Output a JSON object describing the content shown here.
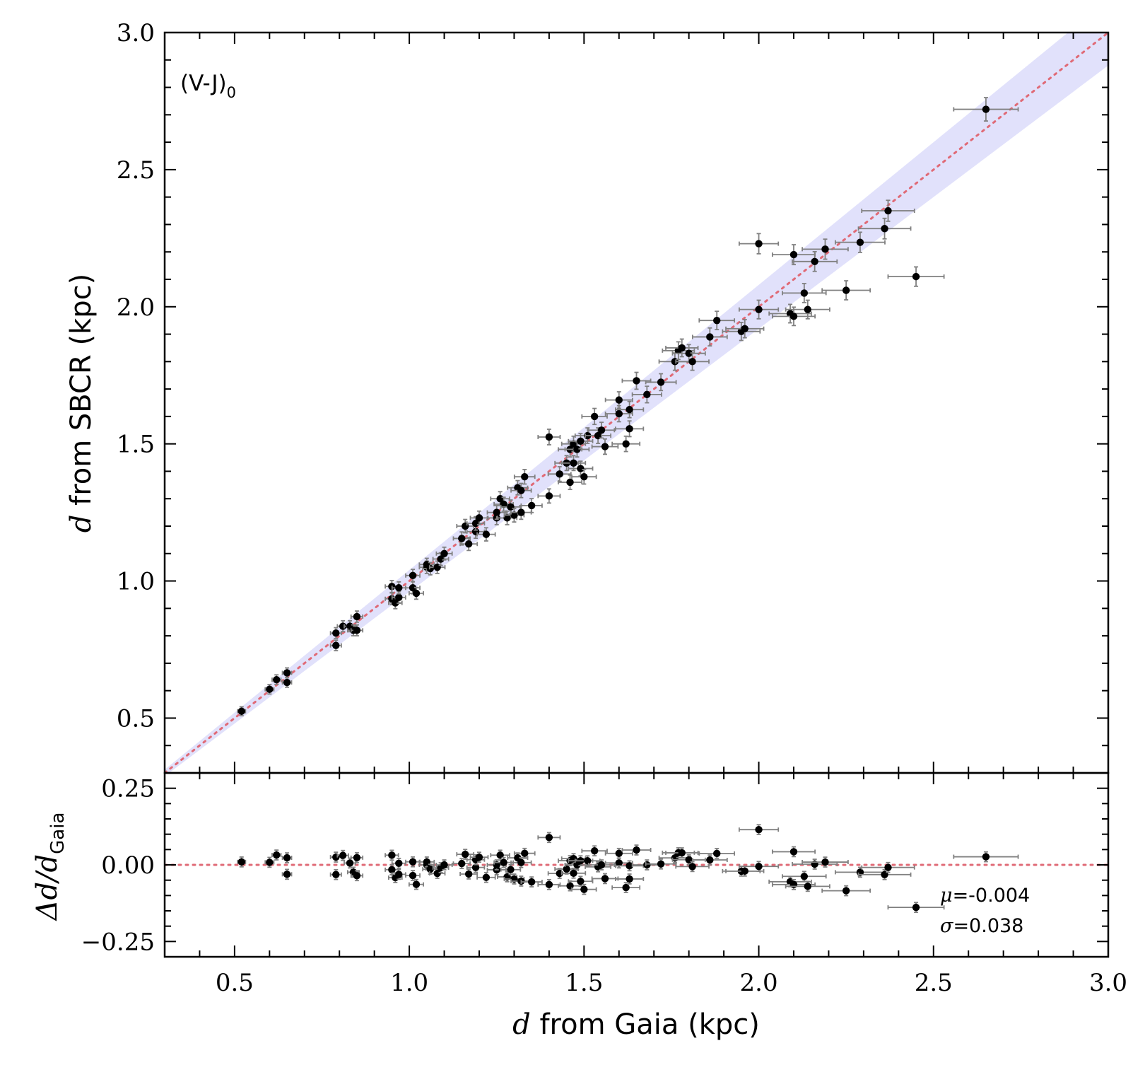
{
  "chart_data": [
    {
      "type": "scatter",
      "panel": "main",
      "annotation": "(V-J)",
      "annotation_sub": "0",
      "xlabel_symbol": "d",
      "xlabel": "from Gaia (kpc)",
      "ylabel_symbol": "d",
      "ylabel": "from SBCR (kpc)",
      "xlim": [
        0.3,
        3.0
      ],
      "ylim": [
        0.3,
        3.0
      ],
      "xticks": [
        0.5,
        1.0,
        1.5,
        2.0,
        2.5,
        3.0
      ],
      "xtick_labels": [
        "0.5",
        "1.0",
        "1.5",
        "2.0",
        "2.5",
        "3.0"
      ],
      "yticks": [
        0.5,
        1.0,
        1.5,
        2.0,
        2.5,
        3.0
      ],
      "ytick_labels": [
        "0.5",
        "1.0",
        "1.5",
        "2.0",
        "2.5",
        "3.0"
      ],
      "reference_line": {
        "style": "dotted",
        "color": "#e06a76",
        "slope": 1,
        "intercept": 0
      },
      "uncertainty_band": {
        "color": "#c9c9f7",
        "relative_halfwidth": 0.04
      },
      "points": [
        [
          0.52,
          0.525
        ],
        [
          0.6,
          0.605
        ],
        [
          0.62,
          0.64
        ],
        [
          0.65,
          0.665
        ],
        [
          0.65,
          0.63
        ],
        [
          0.79,
          0.765
        ],
        [
          0.79,
          0.81
        ],
        [
          0.81,
          0.835
        ],
        [
          0.83,
          0.835
        ],
        [
          0.84,
          0.82
        ],
        [
          0.85,
          0.87
        ],
        [
          0.85,
          0.82
        ],
        [
          0.95,
          0.98
        ],
        [
          0.95,
          0.935
        ],
        [
          0.96,
          0.92
        ],
        [
          0.97,
          0.94
        ],
        [
          0.97,
          0.975
        ],
        [
          1.01,
          1.02
        ],
        [
          1.01,
          0.975
        ],
        [
          1.02,
          0.955
        ],
        [
          1.05,
          1.05
        ],
        [
          1.05,
          1.06
        ],
        [
          1.06,
          1.045
        ],
        [
          1.08,
          1.05
        ],
        [
          1.09,
          1.08
        ],
        [
          1.1,
          1.1
        ],
        [
          1.15,
          1.155
        ],
        [
          1.16,
          1.2
        ],
        [
          1.17,
          1.135
        ],
        [
          1.19,
          1.18
        ],
        [
          1.19,
          1.21
        ],
        [
          1.2,
          1.23
        ],
        [
          1.22,
          1.17
        ],
        [
          1.25,
          1.23
        ],
        [
          1.25,
          1.25
        ],
        [
          1.26,
          1.3
        ],
        [
          1.27,
          1.28
        ],
        [
          1.28,
          1.23
        ],
        [
          1.29,
          1.27
        ],
        [
          1.3,
          1.24
        ],
        [
          1.31,
          1.34
        ],
        [
          1.32,
          1.25
        ],
        [
          1.32,
          1.33
        ],
        [
          1.33,
          1.38
        ],
        [
          1.35,
          1.275
        ],
        [
          1.4,
          1.525
        ],
        [
          1.4,
          1.31
        ],
        [
          1.43,
          1.39
        ],
        [
          1.45,
          1.43
        ],
        [
          1.46,
          1.36
        ],
        [
          1.46,
          1.48
        ],
        [
          1.47,
          1.43
        ],
        [
          1.47,
          1.5
        ],
        [
          1.48,
          1.48
        ],
        [
          1.49,
          1.41
        ],
        [
          1.49,
          1.51
        ],
        [
          1.5,
          1.38
        ],
        [
          1.51,
          1.53
        ],
        [
          1.53,
          1.6
        ],
        [
          1.54,
          1.53
        ],
        [
          1.55,
          1.55
        ],
        [
          1.56,
          1.49
        ],
        [
          1.6,
          1.66
        ],
        [
          1.6,
          1.61
        ],
        [
          1.62,
          1.5
        ],
        [
          1.63,
          1.555
        ],
        [
          1.63,
          1.625
        ],
        [
          1.65,
          1.73
        ],
        [
          1.68,
          1.68
        ],
        [
          1.72,
          1.725
        ],
        [
          1.76,
          1.8
        ],
        [
          1.77,
          1.84
        ],
        [
          1.78,
          1.85
        ],
        [
          1.8,
          1.83
        ],
        [
          1.81,
          1.8
        ],
        [
          1.86,
          1.89
        ],
        [
          1.88,
          1.95
        ],
        [
          1.95,
          1.91
        ],
        [
          1.96,
          1.92
        ],
        [
          2.0,
          1.99
        ],
        [
          2.0,
          2.23
        ],
        [
          2.09,
          1.975
        ],
        [
          2.1,
          1.965
        ],
        [
          2.1,
          2.19
        ],
        [
          2.13,
          2.05
        ],
        [
          2.14,
          1.99
        ],
        [
          2.16,
          2.165
        ],
        [
          2.19,
          2.21
        ],
        [
          2.25,
          2.06
        ],
        [
          2.29,
          2.235
        ],
        [
          2.36,
          2.285
        ],
        [
          2.37,
          2.35
        ],
        [
          2.45,
          2.11
        ],
        [
          2.65,
          2.72
        ]
      ]
    },
    {
      "type": "scatter",
      "panel": "residual",
      "ylabel": "Δd/d",
      "ylabel_sub": "Gaia",
      "xlim": [
        0.3,
        3.0
      ],
      "ylim": [
        -0.3,
        0.3
      ],
      "yticks": [
        -0.25,
        0.0,
        0.25
      ],
      "ytick_labels": [
        "−0.25",
        "0.00",
        "0.25"
      ],
      "stats": {
        "mu_symbol": "μ",
        "mu": "=-0.004",
        "sigma_symbol": "σ",
        "sigma": "=0.038"
      },
      "reference_line": {
        "style": "dotted",
        "color": "#e06a76",
        "y": 0.0
      }
    }
  ]
}
